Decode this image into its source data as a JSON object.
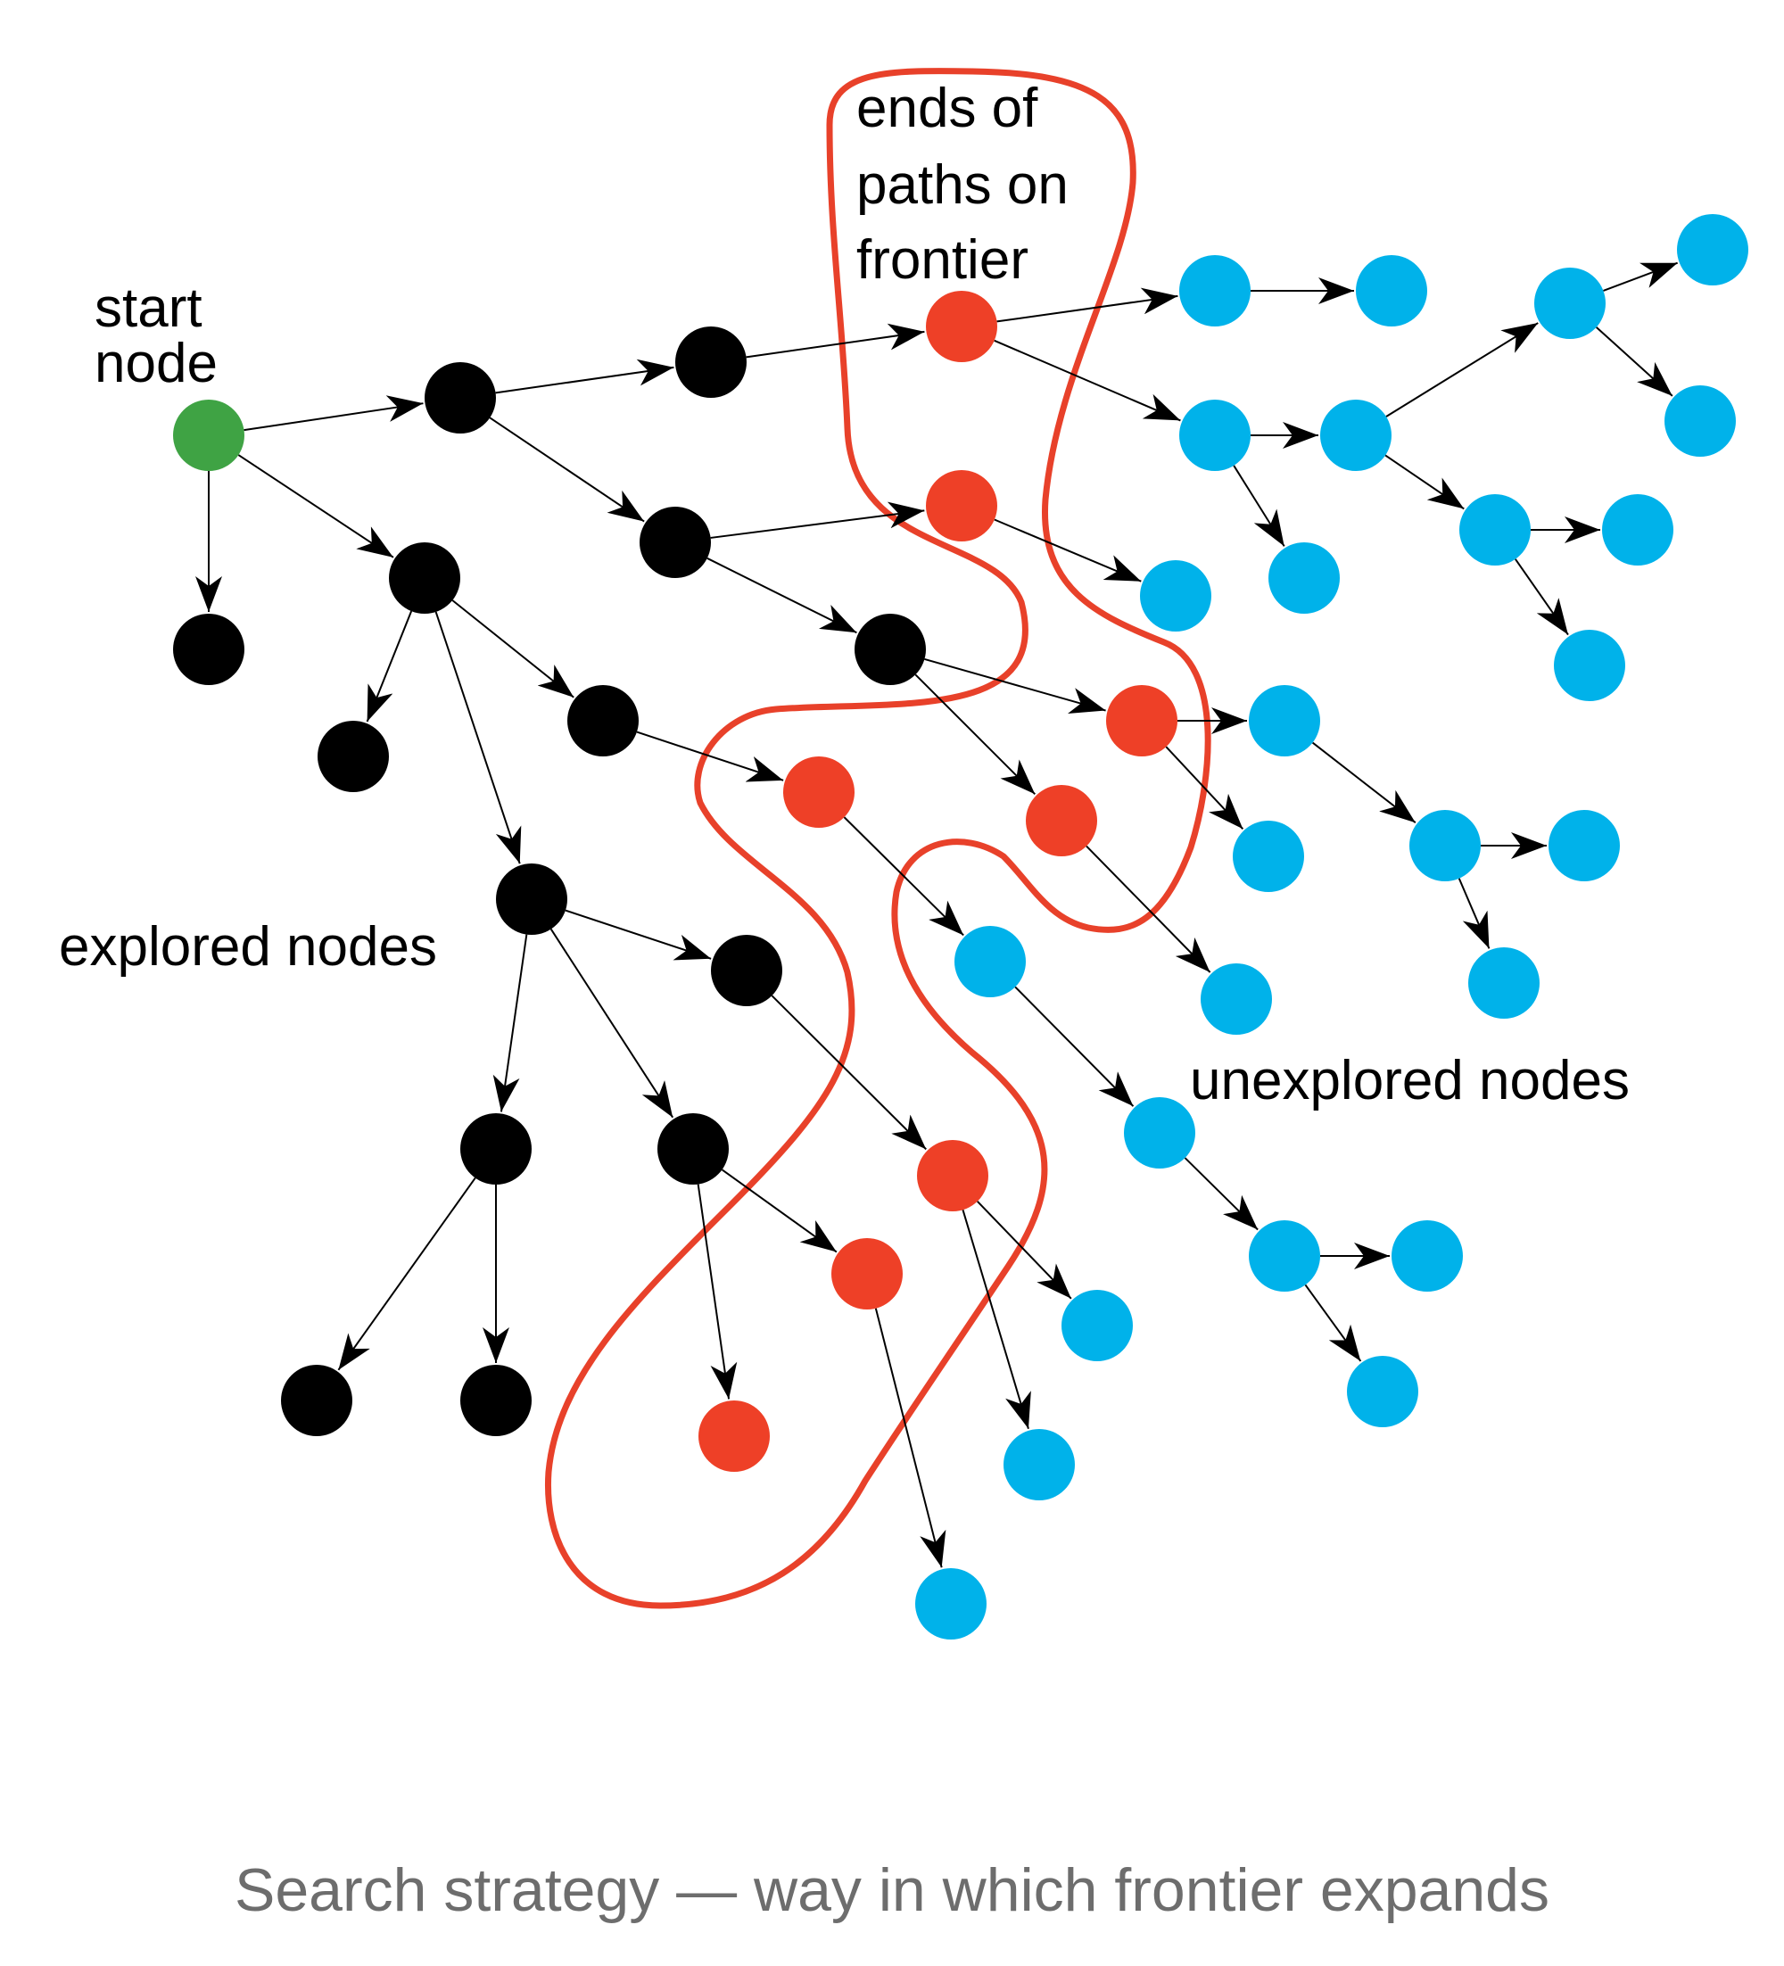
{
  "labels": {
    "frontier_line1": "ends of",
    "frontier_line2": "paths on",
    "frontier_line3": "frontier",
    "start_line1": "start",
    "start_line2": "node",
    "explored": "explored nodes",
    "unexplored": "unexplored nodes"
  },
  "caption": "Search strategy — way in which frontier expands",
  "colors": {
    "start": "#3fa344",
    "explored": "#000000",
    "frontier": "#ee4027",
    "unexplored": "#00b2ea",
    "frontier_outline": "#e8412a",
    "edge": "#000000",
    "caption_text": "#6d6d6d"
  },
  "legend": [
    {
      "kind": "start",
      "label_key": "start"
    },
    {
      "kind": "explored",
      "label_key": "explored"
    },
    {
      "kind": "frontier",
      "label_key": "frontier"
    },
    {
      "kind": "unexplored",
      "label_key": "unexplored"
    }
  ],
  "graph": {
    "nodes": [
      {
        "id": "S",
        "kind": "start"
      },
      {
        "id": "B1",
        "kind": "explored"
      },
      {
        "id": "B2",
        "kind": "explored"
      },
      {
        "id": "B3",
        "kind": "explored"
      },
      {
        "id": "B4",
        "kind": "explored"
      },
      {
        "id": "B5",
        "kind": "explored"
      },
      {
        "id": "B6",
        "kind": "explored"
      },
      {
        "id": "B7",
        "kind": "explored"
      },
      {
        "id": "B8",
        "kind": "explored"
      },
      {
        "id": "B9",
        "kind": "explored"
      },
      {
        "id": "B10",
        "kind": "explored"
      },
      {
        "id": "B11",
        "kind": "explored"
      },
      {
        "id": "B12",
        "kind": "explored"
      },
      {
        "id": "B13",
        "kind": "explored"
      },
      {
        "id": "B14",
        "kind": "explored"
      },
      {
        "id": "B15",
        "kind": "explored"
      },
      {
        "id": "R1",
        "kind": "frontier"
      },
      {
        "id": "R2",
        "kind": "frontier"
      },
      {
        "id": "R3",
        "kind": "frontier"
      },
      {
        "id": "R4",
        "kind": "frontier"
      },
      {
        "id": "R5",
        "kind": "frontier"
      },
      {
        "id": "R6",
        "kind": "frontier"
      },
      {
        "id": "R7",
        "kind": "frontier"
      },
      {
        "id": "R8",
        "kind": "frontier"
      },
      {
        "id": "C1",
        "kind": "unexplored"
      },
      {
        "id": "C2",
        "kind": "unexplored"
      },
      {
        "id": "C3",
        "kind": "unexplored"
      },
      {
        "id": "C4",
        "kind": "unexplored"
      },
      {
        "id": "C5",
        "kind": "unexplored"
      },
      {
        "id": "C6",
        "kind": "unexplored"
      },
      {
        "id": "C7",
        "kind": "unexplored"
      },
      {
        "id": "C8",
        "kind": "unexplored"
      },
      {
        "id": "C9",
        "kind": "unexplored"
      },
      {
        "id": "C10",
        "kind": "unexplored"
      },
      {
        "id": "C11",
        "kind": "unexplored"
      },
      {
        "id": "C12",
        "kind": "unexplored"
      },
      {
        "id": "C13",
        "kind": "unexplored"
      },
      {
        "id": "C14",
        "kind": "unexplored"
      },
      {
        "id": "C15",
        "kind": "unexplored"
      },
      {
        "id": "C16",
        "kind": "unexplored"
      },
      {
        "id": "C17",
        "kind": "unexplored"
      },
      {
        "id": "C18",
        "kind": "unexplored"
      },
      {
        "id": "C19",
        "kind": "unexplored"
      },
      {
        "id": "C20",
        "kind": "unexplored"
      },
      {
        "id": "C21",
        "kind": "unexplored"
      },
      {
        "id": "C22",
        "kind": "unexplored"
      },
      {
        "id": "C23",
        "kind": "unexplored"
      },
      {
        "id": "C24",
        "kind": "unexplored"
      },
      {
        "id": "C25",
        "kind": "unexplored"
      },
      {
        "id": "C26",
        "kind": "unexplored"
      }
    ],
    "edges": [
      [
        "S",
        "B1"
      ],
      [
        "S",
        "B2"
      ],
      [
        "S",
        "B3"
      ],
      [
        "B1",
        "B4"
      ],
      [
        "B1",
        "B5"
      ],
      [
        "B4",
        "R1"
      ],
      [
        "B5",
        "R2"
      ],
      [
        "B5",
        "B6"
      ],
      [
        "B6",
        "R3"
      ],
      [
        "B6",
        "R4"
      ],
      [
        "B3",
        "B7"
      ],
      [
        "B3",
        "B8"
      ],
      [
        "B3",
        "B9"
      ],
      [
        "B8",
        "R5"
      ],
      [
        "B9",
        "B10"
      ],
      [
        "B9",
        "B11"
      ],
      [
        "B9",
        "B12"
      ],
      [
        "B10",
        "R6"
      ],
      [
        "B11",
        "B13"
      ],
      [
        "B11",
        "B14"
      ],
      [
        "B12",
        "R7"
      ],
      [
        "B12",
        "R8"
      ],
      [
        "R1",
        "C1"
      ],
      [
        "R1",
        "C3"
      ],
      [
        "C1",
        "C2"
      ],
      [
        "C3",
        "C4"
      ],
      [
        "C3",
        "C5"
      ],
      [
        "C4",
        "C6"
      ],
      [
        "C4",
        "C9"
      ],
      [
        "C6",
        "C7"
      ],
      [
        "C6",
        "C8"
      ],
      [
        "C9",
        "C10"
      ],
      [
        "C9",
        "C11"
      ],
      [
        "R2",
        "C12"
      ],
      [
        "R3",
        "C13"
      ],
      [
        "R3",
        "C14"
      ],
      [
        "C13",
        "C15"
      ],
      [
        "C15",
        "C16"
      ],
      [
        "C15",
        "C17"
      ],
      [
        "R4",
        "C18"
      ],
      [
        "R5",
        "C19"
      ],
      [
        "C19",
        "C20"
      ],
      [
        "C20",
        "C21"
      ],
      [
        "C21",
        "C22"
      ],
      [
        "C21",
        "C23"
      ],
      [
        "R6",
        "C24"
      ],
      [
        "R6",
        "C25"
      ],
      [
        "R7",
        "C26"
      ]
    ]
  }
}
